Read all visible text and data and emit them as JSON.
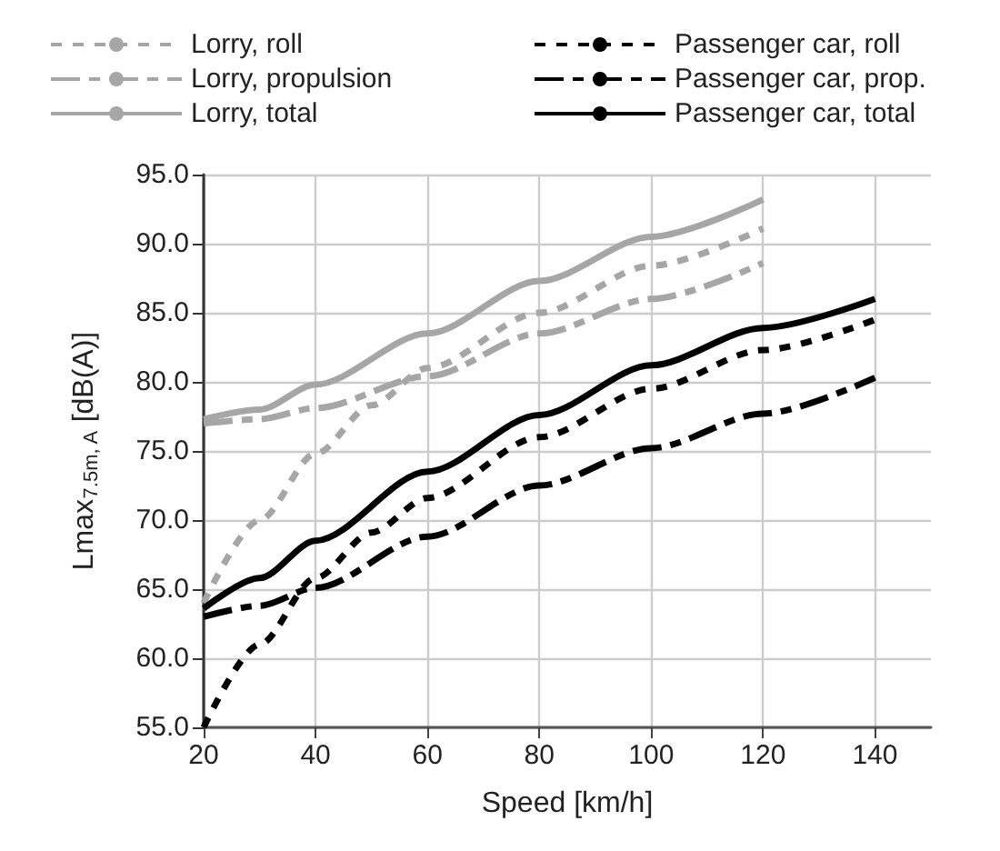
{
  "chart_data": {
    "type": "line",
    "xlabel": "Speed [km/h]",
    "ylabel": "Lmax$_{7.5m, A}$ [dB(A)]",
    "xlim": [
      20,
      150
    ],
    "xticks": [
      20,
      40,
      60,
      80,
      100,
      120,
      140
    ],
    "ylim": [
      55,
      95
    ],
    "yticks": [
      {
        "value": 55,
        "label": "55.0"
      },
      {
        "value": 60,
        "label": "60.0"
      },
      {
        "value": 65,
        "label": "65.0"
      },
      {
        "value": 70,
        "label": "70.0"
      },
      {
        "value": 75,
        "label": "75.0"
      },
      {
        "value": 80,
        "label": "80.0"
      },
      {
        "value": 85,
        "label": "85.0"
      },
      {
        "value": 90,
        "label": "90.0"
      },
      {
        "value": 95,
        "label": "95.0"
      }
    ],
    "grid": true,
    "legend": "top",
    "marker": "none",
    "series": [
      {
        "name": "Lorry, roll",
        "color": "#a6a6a6",
        "line_style": "dotted",
        "x": [
          20,
          30,
          40,
          50,
          60,
          80,
          100,
          120
        ],
        "values": [
          64,
          70,
          74.8,
          78.3,
          81,
          85,
          88.4,
          91.1
        ]
      },
      {
        "name": "Lorry, propulsion",
        "color": "#a6a6a6",
        "line_style": "dashed",
        "x": [
          20,
          30,
          40,
          60,
          80,
          100,
          120
        ],
        "values": [
          77,
          77.3,
          78.1,
          80.4,
          83.5,
          86,
          88.6
        ]
      },
      {
        "name": "Lorry, total",
        "color": "#a6a6a6",
        "line_style": "solid",
        "x": [
          20,
          30,
          40,
          60,
          80,
          100,
          120
        ],
        "values": [
          77.3,
          78,
          79.8,
          83.5,
          87.3,
          90.5,
          93.2
        ]
      },
      {
        "name": "Passenger car, roll",
        "color": "#000000",
        "line_style": "dotted",
        "x": [
          20,
          30,
          40,
          50,
          60,
          80,
          100,
          120,
          140
        ],
        "values": [
          55,
          61,
          65.8,
          69.1,
          71.6,
          76,
          79.5,
          82.3,
          84.5
        ]
      },
      {
        "name": "Passenger car, prop.",
        "color": "#000000",
        "line_style": "dashed",
        "x": [
          20,
          30,
          40,
          60,
          80,
          100,
          120,
          140
        ],
        "values": [
          63,
          63.8,
          65.1,
          68.8,
          72.5,
          75.2,
          77.7,
          80.3
        ]
      },
      {
        "name": "Passenger car, total",
        "color": "#000000",
        "line_style": "solid",
        "x": [
          20,
          30,
          40,
          60,
          80,
          100,
          120,
          140
        ],
        "values": [
          63.6,
          65.8,
          68.5,
          73.5,
          77.6,
          81.2,
          83.9,
          86
        ]
      }
    ]
  }
}
